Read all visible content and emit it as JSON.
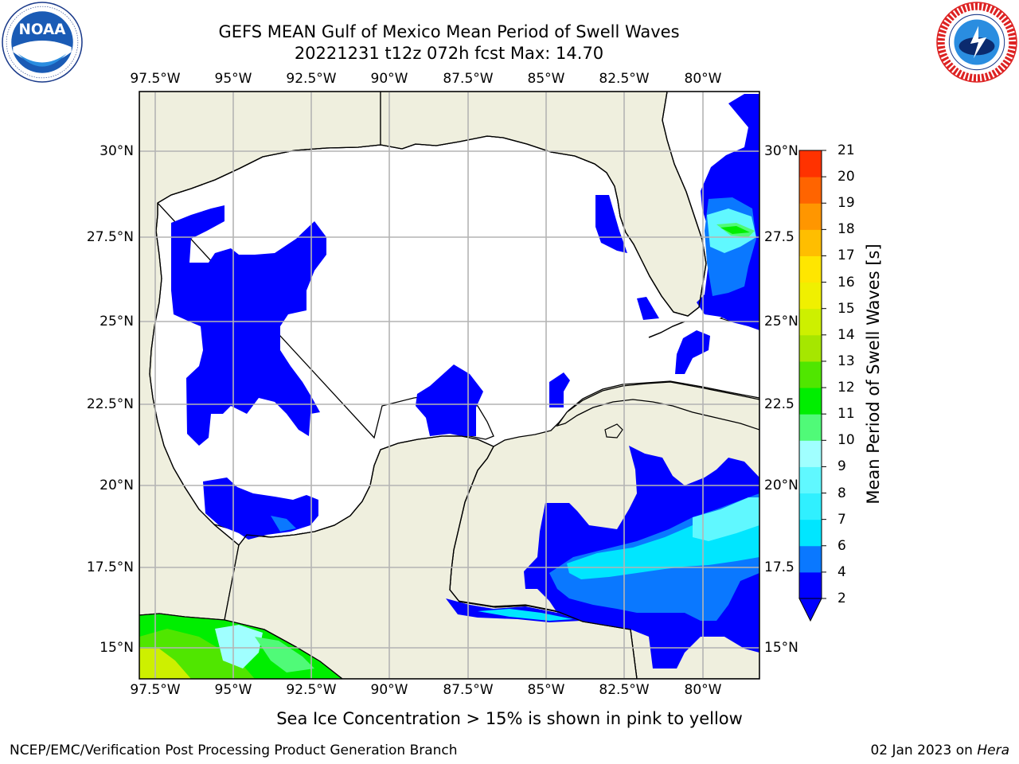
{
  "header": {
    "title_line1": "GEFS MEAN Gulf of Mexico Mean Period of Swell Waves",
    "title_line2": "20221231 t12z 072h fcst   Max: 14.70"
  },
  "logos": {
    "left": {
      "name": "noaa-logo",
      "text": "NOAA",
      "ring_text": "NATIONAL OCEANIC AND ATMOSPHERIC ADMINISTRATION · U.S. DEPARTMENT OF COMMERCE"
    },
    "right": {
      "name": "nws-logo",
      "ring_text": "NATIONAL WEATHER SERVICE"
    }
  },
  "map": {
    "lon_ticks": [
      "97.5°W",
      "95°W",
      "92.5°W",
      "90°W",
      "87.5°W",
      "85°W",
      "82.5°W",
      "80°W"
    ],
    "lat_ticks_left": [
      "30°N",
      "27.5°N",
      "25°N",
      "22.5°N",
      "20°N",
      "17.5°N",
      "15°N"
    ],
    "lat_ticks_right": [
      "30°N",
      "27.5",
      "25°N",
      "22.5",
      "20°N",
      "17.5",
      "15°N"
    ],
    "colors": {
      "land": "#efefde",
      "ocean_blank": "#ffffff",
      "grid": "#b4b4b4",
      "coast": "#000000"
    }
  },
  "colorbar": {
    "label": "Mean Period of Swell Waves [s]",
    "ticks": [
      "21",
      "20",
      "19",
      "18",
      "17",
      "16",
      "15",
      "14",
      "13",
      "12",
      "11",
      "10",
      "9",
      "8",
      "7",
      "6",
      "4",
      "2"
    ],
    "levels": [
      2,
      4,
      6,
      7,
      8,
      9,
      10,
      11,
      12,
      13,
      14,
      15,
      16,
      17,
      18,
      19,
      20,
      21
    ],
    "colors": [
      "#0000ff",
      "#0a78ff",
      "#00e6ff",
      "#30f0ff",
      "#60f8ff",
      "#a0ffff",
      "#50fa78",
      "#00ee00",
      "#50e600",
      "#a6e600",
      "#cdf000",
      "#f0f000",
      "#ffe600",
      "#ffbe00",
      "#ff9600",
      "#ff6400",
      "#ff3200",
      "#ff0000"
    ]
  },
  "note": "Sea Ice Concentration > 15% is shown in pink to yellow",
  "footer": {
    "left": "NCEP/EMC/Verification Post Processing Product Generation Branch",
    "right_date": "02 Jan 2023 on ",
    "right_system": "Hera"
  }
}
